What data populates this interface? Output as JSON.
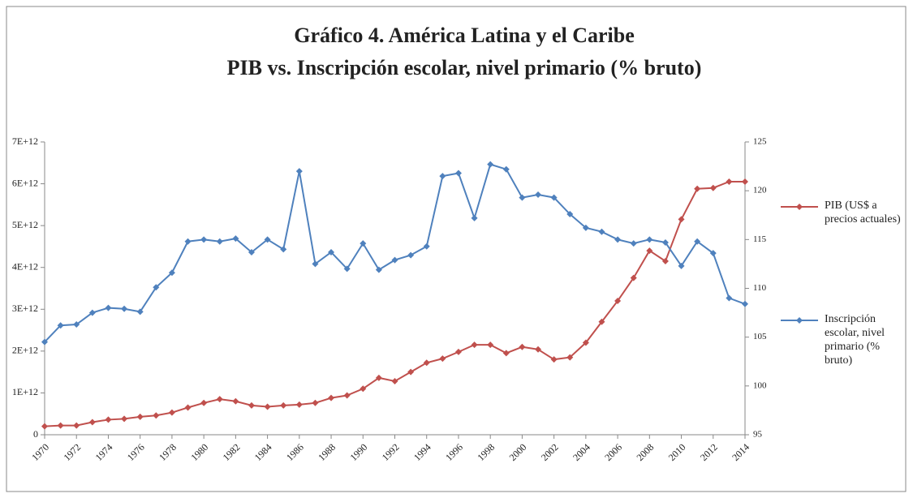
{
  "chart_data": {
    "type": "line",
    "title": "Gráfico 4. América Latina y el Caribe",
    "subtitle": "PIB vs. Inscripción escolar, nivel primario (% bruto)",
    "x": [
      1970,
      1971,
      1972,
      1973,
      1974,
      1975,
      1976,
      1977,
      1978,
      1979,
      1980,
      1981,
      1982,
      1983,
      1984,
      1985,
      1986,
      1987,
      1988,
      1989,
      1990,
      1991,
      1992,
      1993,
      1994,
      1995,
      1996,
      1997,
      1998,
      1999,
      2000,
      2001,
      2002,
      2003,
      2004,
      2005,
      2006,
      2007,
      2008,
      2009,
      2010,
      2011,
      2012,
      2013,
      2014
    ],
    "xlim": [
      1970,
      2014
    ],
    "xticks": [
      1970,
      1972,
      1974,
      1976,
      1978,
      1980,
      1982,
      1984,
      1986,
      1988,
      1990,
      1992,
      1994,
      1996,
      1998,
      2000,
      2002,
      2004,
      2006,
      2008,
      2010,
      2012,
      2014
    ],
    "ylim": [
      0,
      7000000000000.0
    ],
    "yticks": [
      {
        "value": 0,
        "label": "0"
      },
      {
        "value": 1000000000000.0,
        "label": "1E+12"
      },
      {
        "value": 2000000000000.0,
        "label": "2E+12"
      },
      {
        "value": 3000000000000.0,
        "label": "3E+12"
      },
      {
        "value": 4000000000000.0,
        "label": "4E+12"
      },
      {
        "value": 5000000000000.0,
        "label": "5E+12"
      },
      {
        "value": 6000000000000.0,
        "label": "6E+12"
      },
      {
        "value": 7000000000000.0,
        "label": "7E+12"
      }
    ],
    "y2lim": [
      95,
      125
    ],
    "y2ticks": [
      95,
      100,
      105,
      110,
      115,
      120,
      125
    ],
    "series": [
      {
        "name": "PIB (US$ a precios actuales)",
        "color": "#c0504d",
        "values": [
          200000000000.0,
          220000000000.0,
          220000000000.0,
          300000000000.0,
          360000000000.0,
          380000000000.0,
          430000000000.0,
          460000000000.0,
          530000000000.0,
          650000000000.0,
          760000000000.0,
          850000000000.0,
          800000000000.0,
          700000000000.0,
          670000000000.0,
          700000000000.0,
          720000000000.0,
          760000000000.0,
          880000000000.0,
          940000000000.0,
          1100000000000.0,
          1360000000000.0,
          1280000000000.0,
          1500000000000.0,
          1720000000000.0,
          1820000000000.0,
          1980000000000.0,
          2150000000000.0,
          2150000000000.0,
          1950000000000.0,
          2100000000000.0,
          2040000000000.0,
          1800000000000.0,
          1850000000000.0,
          2200000000000.0,
          2700000000000.0,
          3200000000000.0,
          3750000000000.0,
          4400000000000.0,
          4150000000000.0,
          5150000000000.0,
          5880000000000.0,
          5900000000000.0,
          6050000000000.0,
          6050000000000.0
        ]
      },
      {
        "name": "Inscripción escolar, nivel primario (% bruto)",
        "color": "#4f81bd",
        "axis": "y2",
        "values": [
          104.5,
          106.2,
          106.3,
          107.5,
          108,
          107.9,
          107.6,
          110.1,
          111.6,
          114.8,
          115,
          114.8,
          115.1,
          113.7,
          115,
          114,
          122,
          112.5,
          113.7,
          112,
          114.6,
          111.9,
          112.9,
          113.4,
          114.3,
          121.5,
          121.8,
          117.2,
          122.7,
          122.2,
          119.3,
          119.6,
          119.3,
          117.6,
          116.2,
          115.8,
          115,
          114.6,
          115,
          114.7,
          112.3,
          114.8,
          113.6,
          109,
          108.4
        ]
      }
    ]
  }
}
